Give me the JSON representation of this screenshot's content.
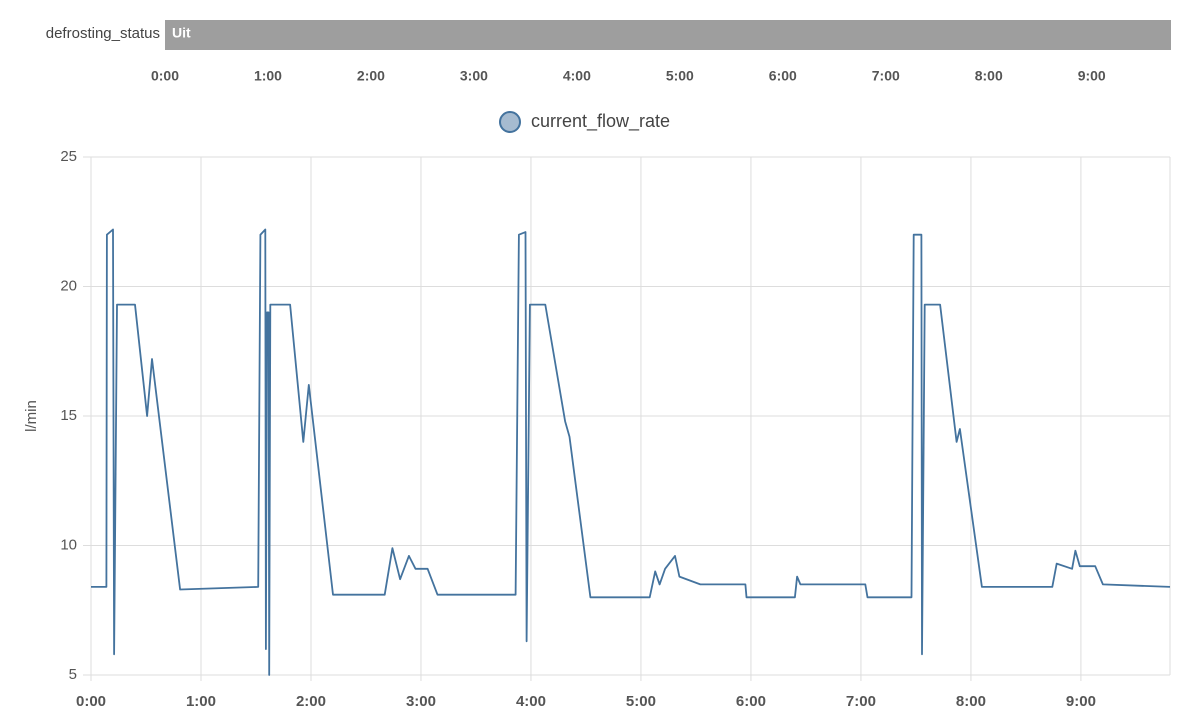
{
  "timeline": {
    "entity": "defrosting_status",
    "state": "Uit",
    "color": "#9e9e9e",
    "xlim": [
      0,
      9.77
    ],
    "xticks": [
      {
        "value": 0,
        "label": "0:00"
      },
      {
        "value": 1,
        "label": "1:00"
      },
      {
        "value": 2,
        "label": "2:00"
      },
      {
        "value": 3,
        "label": "3:00"
      },
      {
        "value": 4,
        "label": "4:00"
      },
      {
        "value": 5,
        "label": "5:00"
      },
      {
        "value": 6,
        "label": "6:00"
      },
      {
        "value": 7,
        "label": "7:00"
      },
      {
        "value": 8,
        "label": "8:00"
      },
      {
        "value": 9,
        "label": "9:00"
      }
    ]
  },
  "chart_data": {
    "type": "line",
    "y_label": "l/min",
    "grid": true,
    "xlim": [
      0,
      9.81
    ],
    "ylim": [
      5,
      25
    ],
    "yticks": [
      5,
      10,
      15,
      20,
      25
    ],
    "xticks": [
      {
        "value": 0,
        "label": "0:00"
      },
      {
        "value": 1,
        "label": "1:00"
      },
      {
        "value": 2,
        "label": "2:00"
      },
      {
        "value": 3,
        "label": "3:00"
      },
      {
        "value": 4,
        "label": "4:00"
      },
      {
        "value": 5,
        "label": "5:00"
      },
      {
        "value": 6,
        "label": "6:00"
      },
      {
        "value": 7,
        "label": "7:00"
      },
      {
        "value": 8,
        "label": "8:00"
      },
      {
        "value": 9,
        "label": "9:00"
      }
    ],
    "x": [
      0,
      0.14,
      0.145,
      0.2,
      0.21,
      0.236,
      0.4,
      0.51,
      0.555,
      0.81,
      1.52,
      1.54,
      1.585,
      1.59,
      1.6,
      1.615,
      1.62,
      1.63,
      1.81,
      1.93,
      1.98,
      2.2,
      2.67,
      2.74,
      2.81,
      2.89,
      2.95,
      3.06,
      3.15,
      3.86,
      3.89,
      3.95,
      3.96,
      3.99,
      4.13,
      4.31,
      4.35,
      4.54,
      5.08,
      5.13,
      5.17,
      5.22,
      5.31,
      5.35,
      5.54,
      5.95,
      5.96,
      6.4,
      6.42,
      6.45,
      7.04,
      7.06,
      7.46,
      7.48,
      7.55,
      7.555,
      7.58,
      7.72,
      7.87,
      7.9,
      8.1,
      8.74,
      8.78,
      8.92,
      8.95,
      8.99,
      9.13,
      9.2,
      9.81
    ],
    "series": [
      {
        "name": "current_flow_rate",
        "color": "#44739e",
        "fill": "#a6bbd0",
        "values": [
          8.4,
          8.4,
          22,
          22.2,
          5.8,
          19.3,
          19.3,
          15,
          17.2,
          8.3,
          8.4,
          22,
          22.2,
          6,
          19,
          19,
          5,
          19.3,
          19.3,
          14,
          16.2,
          8.1,
          8.1,
          9.9,
          8.7,
          9.6,
          9.1,
          9.1,
          8.1,
          8.1,
          22,
          22.1,
          6.3,
          19.3,
          19.3,
          14.8,
          14.2,
          8,
          8,
          9,
          8.5,
          9.1,
          9.6,
          8.8,
          8.5,
          8.5,
          8,
          8,
          8.8,
          8.5,
          8.5,
          8,
          8,
          22,
          22,
          5.8,
          19.3,
          19.3,
          14,
          14.5,
          8.4,
          8.4,
          9.3,
          9.1,
          9.8,
          9.2,
          9.2,
          8.5,
          8.4
        ]
      }
    ]
  }
}
